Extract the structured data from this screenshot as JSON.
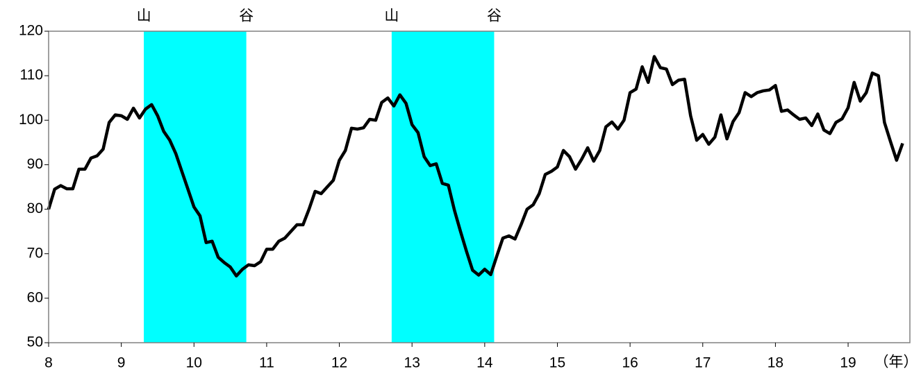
{
  "chart_data": {
    "type": "line",
    "x_label": "（年）",
    "xlim": [
      8,
      19.85
    ],
    "ylim": [
      50,
      120
    ],
    "xticks": [
      8,
      9,
      10,
      11,
      12,
      13,
      14,
      15,
      16,
      17,
      18,
      19
    ],
    "yticks": [
      50,
      60,
      70,
      80,
      90,
      100,
      110,
      120
    ],
    "shaded_periods": [
      {
        "from": 9.31,
        "to": 10.72,
        "from_label": "山",
        "to_label": "谷",
        "color": "#00ffff"
      },
      {
        "from": 12.72,
        "to": 14.13,
        "from_label": "山",
        "to_label": "谷",
        "color": "#00ffff"
      }
    ],
    "x": [
      8,
      8.083,
      8.167,
      8.25,
      8.333,
      8.417,
      8.5,
      8.583,
      8.667,
      8.75,
      8.833,
      8.917,
      9,
      9.083,
      9.167,
      9.25,
      9.333,
      9.417,
      9.5,
      9.583,
      9.667,
      9.75,
      9.833,
      9.917,
      10,
      10.083,
      10.167,
      10.25,
      10.333,
      10.417,
      10.5,
      10.583,
      10.667,
      10.75,
      10.833,
      10.917,
      11,
      11.083,
      11.167,
      11.25,
      11.333,
      11.417,
      11.5,
      11.583,
      11.667,
      11.75,
      11.833,
      11.917,
      12,
      12.083,
      12.167,
      12.25,
      12.333,
      12.417,
      12.5,
      12.583,
      12.667,
      12.75,
      12.833,
      12.917,
      13,
      13.083,
      13.167,
      13.25,
      13.333,
      13.417,
      13.5,
      13.583,
      13.667,
      13.75,
      13.833,
      13.917,
      14,
      14.083,
      14.167,
      14.25,
      14.333,
      14.417,
      14.5,
      14.583,
      14.667,
      14.75,
      14.833,
      14.917,
      15,
      15.083,
      15.167,
      15.25,
      15.333,
      15.417,
      15.5,
      15.583,
      15.667,
      15.75,
      15.833,
      15.917,
      16,
      16.083,
      16.167,
      16.25,
      16.333,
      16.417,
      16.5,
      16.583,
      16.667,
      16.75,
      16.833,
      16.917,
      17,
      17.083,
      17.167,
      17.25,
      17.333,
      17.417,
      17.5,
      17.583,
      17.667,
      17.75,
      17.833,
      17.917,
      18,
      18.083,
      18.167,
      18.25,
      18.333,
      18.417,
      18.5,
      18.583,
      18.667,
      18.75,
      18.833,
      18.917,
      19,
      19.083,
      19.167,
      19.25,
      19.333,
      19.417,
      19.5,
      19.583,
      19.667,
      19.75
    ],
    "series": [
      {
        "color": "#000000",
        "values": [
          80,
          84.5,
          85.3,
          84.6,
          84.6,
          89,
          89,
          91.5,
          92,
          93.5,
          99.5,
          101.2,
          101,
          100.2,
          102.7,
          100.5,
          102.5,
          103.5,
          101,
          97.5,
          95.5,
          92.5,
          88.5,
          84.5,
          80.5,
          78.5,
          72.5,
          72.8,
          69.2,
          68,
          67,
          65,
          66.5,
          67.5,
          67.3,
          68.2,
          71,
          71,
          72.8,
          73.5,
          75,
          76.5,
          76.5,
          80,
          84,
          83.5,
          85,
          86.5,
          91,
          93.2,
          98.2,
          98,
          98.3,
          100.2,
          100,
          104,
          105,
          103.2,
          105.7,
          103.8,
          99,
          97.2,
          91.8,
          89.8,
          90.2,
          85.8,
          85.4,
          79.8,
          75,
          70.5,
          66.3,
          65.2,
          66.5,
          65.3,
          69.5,
          73.5,
          74,
          73.3,
          76.5,
          80,
          81,
          83.5,
          87.8,
          88.5,
          89.5,
          93.2,
          91.8,
          89,
          91.2,
          93.8,
          90.8,
          93.2,
          98.5,
          99.6,
          98,
          100,
          106.2,
          107,
          112,
          108.5,
          114.3,
          111.8,
          111.5,
          108,
          109,
          109.2,
          101,
          95.5,
          96.8,
          94.6,
          96.2,
          101.2,
          95.8,
          99.7,
          101.7,
          106.2,
          105.3,
          106.2,
          106.6,
          106.8,
          107.8,
          102,
          102.3,
          101.2,
          100.2,
          100.5,
          98.8,
          101.4,
          97.8,
          97,
          99.5,
          100.3,
          102.8,
          108.5,
          104.3,
          106.2,
          110.6,
          110,
          99.5,
          95.2,
          91,
          94.8
        ]
      }
    ]
  }
}
